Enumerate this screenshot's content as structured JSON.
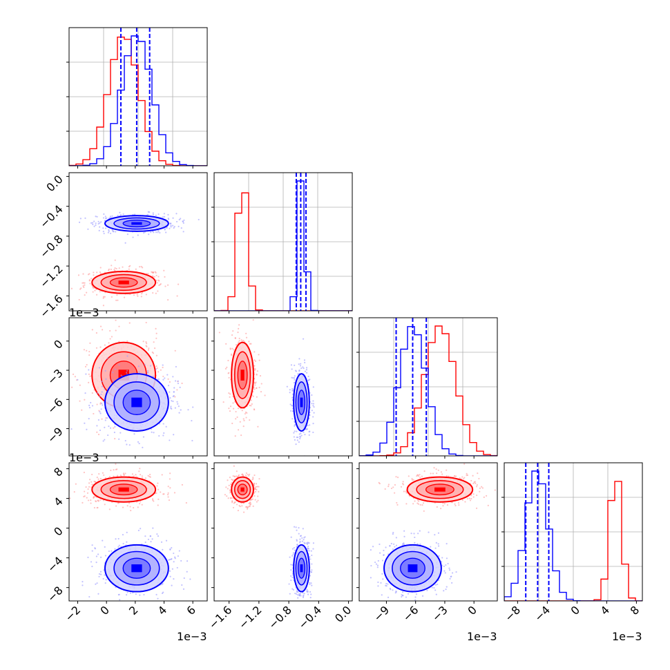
{
  "colors": {
    "red": "#ff0000",
    "blue": "#0000ff",
    "grid": "#b0b0b0"
  },
  "chart_data": {
    "type": "corner",
    "title": "",
    "parameters": 4,
    "offset_label": "1e−3",
    "series": [
      {
        "color": "#ff0000",
        "center": [
          1.2,
          -1.42,
          -3.5,
          5.2
        ],
        "std": [
          1.05,
          0.07,
          1.6,
          0.8
        ]
      },
      {
        "color": "#0000ff",
        "center": [
          2.1,
          -0.63,
          -6.3,
          -5.4
        ],
        "std": [
          1.05,
          0.05,
          1.4,
          1.5
        ],
        "quantiles_16_50_84": [
          [
            1.0,
            2.1,
            3.0
          ],
          [
            -0.7,
            -0.64,
            -0.57
          ],
          [
            -8.0,
            -6.3,
            -4.9
          ],
          [
            -6.9,
            -5.3,
            -3.8
          ]
        ]
      }
    ],
    "axes": [
      {
        "range": [
          -2.6,
          7.0
        ],
        "ticks": [
          -2,
          0,
          2,
          4,
          6
        ],
        "tick_labels": [
          "−2",
          "0",
          "2",
          "4",
          "6"
        ]
      },
      {
        "range": [
          -1.8,
          0.05
        ],
        "ticks": [
          -1.6,
          -1.2,
          -0.8,
          -0.4,
          0.0
        ],
        "tick_labels": [
          "−1.6",
          "−1.2",
          "−0.8",
          "−0.4",
          "0.0"
        ]
      },
      {
        "range": [
          -11.8,
          2.4
        ],
        "ticks": [
          -9,
          -6,
          -3,
          0
        ],
        "tick_labels": [
          "−9",
          "−6",
          "−3",
          "0"
        ]
      },
      {
        "range": [
          -9.8,
          8.8
        ],
        "ticks": [
          -8,
          -4,
          0,
          4,
          8
        ],
        "tick_labels": [
          "−8",
          "−4",
          "0",
          "4",
          "8"
        ]
      }
    ]
  }
}
